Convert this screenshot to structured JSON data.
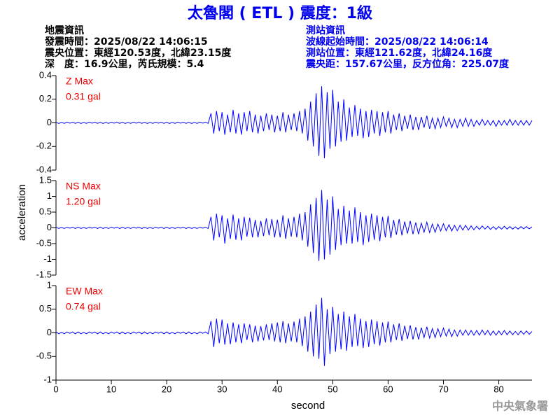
{
  "header": {
    "title": "太魯閣 ( ETL ) 震度：1級",
    "left": [
      "地震資訊",
      "發震時間：2025/08/22 14:06:15",
      "震央位置：東經120.53度，北緯23.15度",
      "深　度：16.9公里，芮氏規模：5.4"
    ],
    "right": [
      "測站資訊",
      "波線起始時間：2025/08/22 14:06:14",
      "測站位置：東經121.62度，北緯24.16度",
      "震央距：157.67公里，反方位角：225.07度"
    ]
  },
  "footer": "中央氣象署",
  "chart_data": [
    {
      "type": "line",
      "title": "Z Max",
      "annotation": "0.31 gal",
      "color": "#0000ff",
      "label_color": "#ee0000",
      "xlim": [
        0,
        86
      ],
      "ylim": [
        -0.4,
        0.4
      ],
      "yticks": [
        -0.4,
        -0.2,
        0,
        0.2,
        0.4
      ],
      "x": [
        0,
        0.5,
        1,
        1.5,
        2,
        2.5,
        3,
        3.5,
        4,
        4.5,
        5,
        5.5,
        6,
        6.5,
        7,
        7.5,
        8,
        8.5,
        9,
        9.5,
        10,
        10.5,
        11,
        11.5,
        12,
        12.5,
        13,
        13.5,
        14,
        14.5,
        15,
        15.5,
        16,
        16.5,
        17,
        17.5,
        18,
        18.5,
        19,
        19.5,
        20,
        20.5,
        21,
        21.5,
        22,
        22.5,
        23,
        23.5,
        24,
        24.5,
        25,
        25.5,
        26,
        26.5,
        27,
        27.5,
        28,
        28.5,
        29,
        29.5,
        30,
        30.5,
        31,
        31.5,
        32,
        32.5,
        33,
        33.5,
        34,
        34.5,
        35,
        35.5,
        36,
        36.5,
        37,
        37.5,
        38,
        38.5,
        39,
        39.5,
        40,
        40.5,
        41,
        41.5,
        42,
        42.5,
        43,
        43.5,
        44,
        44.5,
        45,
        45.5,
        46,
        46.5,
        47,
        47.5,
        48,
        48.5,
        49,
        49.5,
        50,
        50.5,
        51,
        51.5,
        52,
        52.5,
        53,
        53.5,
        54,
        54.5,
        55,
        55.5,
        56,
        56.5,
        57,
        57.5,
        58,
        58.5,
        59,
        59.5,
        60,
        60.5,
        61,
        61.5,
        62,
        62.5,
        63,
        63.5,
        64,
        64.5,
        65,
        65.5,
        66,
        66.5,
        67,
        67.5,
        68,
        68.5,
        69,
        69.5,
        70,
        70.5,
        71,
        71.5,
        72,
        72.5,
        73,
        73.5,
        74,
        74.5,
        75,
        75.5,
        76,
        76.5,
        77,
        77.5,
        78,
        78.5,
        79,
        79.5,
        80,
        80.5,
        81,
        81.5,
        82,
        82.5,
        83,
        83.5,
        84,
        84.5,
        85,
        85.5,
        86
      ],
      "values": [
        0.004,
        -0.005,
        0.003,
        -0.004,
        0.005,
        -0.003,
        0.004,
        -0.004,
        0.004,
        -0.005,
        0.003,
        -0.004,
        0.005,
        -0.003,
        0.004,
        -0.004,
        0.004,
        -0.005,
        0.003,
        -0.004,
        0.005,
        -0.003,
        0.004,
        -0.004,
        0.004,
        -0.005,
        0.003,
        -0.004,
        0.005,
        -0.003,
        0.004,
        -0.004,
        0.004,
        -0.005,
        0.003,
        -0.004,
        0.005,
        -0.003,
        0.004,
        -0.004,
        0.004,
        -0.005,
        0.003,
        -0.004,
        0.005,
        -0.003,
        0.004,
        -0.004,
        0.004,
        -0.005,
        0.003,
        -0.004,
        0.005,
        -0.003,
        0.004,
        -0.004,
        0.08,
        -0.09,
        0.1,
        -0.07,
        0.09,
        -0.1,
        0.07,
        -0.08,
        0.11,
        -0.09,
        0.08,
        -0.1,
        0.09,
        -0.07,
        0.1,
        -0.08,
        0.07,
        -0.09,
        0.06,
        -0.07,
        0.08,
        -0.06,
        0.07,
        -0.08,
        0.06,
        -0.07,
        0.09,
        -0.08,
        0.07,
        -0.06,
        0.08,
        -0.07,
        0.1,
        -0.09,
        0.12,
        -0.15,
        0.18,
        -0.2,
        0.25,
        -0.28,
        0.31,
        -0.3,
        0.26,
        -0.22,
        0.28,
        -0.2,
        0.18,
        -0.16,
        0.2,
        -0.15,
        0.13,
        -0.12,
        0.15,
        -0.11,
        0.12,
        -0.13,
        0.1,
        -0.12,
        0.11,
        -0.09,
        0.1,
        -0.11,
        0.09,
        -0.08,
        0.1,
        -0.09,
        0.07,
        -0.06,
        0.08,
        -0.07,
        0.06,
        -0.05,
        0.07,
        -0.06,
        0.05,
        -0.06,
        0.05,
        -0.04,
        0.06,
        -0.05,
        0.04,
        -0.05,
        0.04,
        -0.04,
        0.05,
        -0.03,
        0.04,
        -0.04,
        0.03,
        -0.04,
        0.03,
        -0.03,
        0.04,
        -0.03,
        0.03,
        -0.03,
        0.02,
        -0.02,
        0.03,
        -0.02,
        0.02,
        -0.02,
        0.02,
        -0.03,
        0.02,
        -0.02,
        0.02,
        -0.02,
        0.03,
        -0.02,
        0.02,
        -0.02,
        0.02,
        -0.02,
        0.02,
        -0.02,
        0.02
      ]
    },
    {
      "type": "line",
      "title": "NS Max",
      "annotation": "1.20 gal",
      "color": "#0000ff",
      "label_color": "#ee0000",
      "ylabel": "acceleration",
      "xlim": [
        0,
        86
      ],
      "ylim": [
        -1.5,
        1.5
      ],
      "yticks": [
        -1.5,
        -1,
        -0.5,
        0,
        0.5,
        1,
        1.5
      ],
      "x": [
        0,
        0.5,
        1,
        1.5,
        2,
        2.5,
        3,
        3.5,
        4,
        4.5,
        5,
        5.5,
        6,
        6.5,
        7,
        7.5,
        8,
        8.5,
        9,
        9.5,
        10,
        10.5,
        11,
        11.5,
        12,
        12.5,
        13,
        13.5,
        14,
        14.5,
        15,
        15.5,
        16,
        16.5,
        17,
        17.5,
        18,
        18.5,
        19,
        19.5,
        20,
        20.5,
        21,
        21.5,
        22,
        22.5,
        23,
        23.5,
        24,
        24.5,
        25,
        25.5,
        26,
        26.5,
        27,
        27.5,
        28,
        28.5,
        29,
        29.5,
        30,
        30.5,
        31,
        31.5,
        32,
        32.5,
        33,
        33.5,
        34,
        34.5,
        35,
        35.5,
        36,
        36.5,
        37,
        37.5,
        38,
        38.5,
        39,
        39.5,
        40,
        40.5,
        41,
        41.5,
        42,
        42.5,
        43,
        43.5,
        44,
        44.5,
        45,
        45.5,
        46,
        46.5,
        47,
        47.5,
        48,
        48.5,
        49,
        49.5,
        50,
        50.5,
        51,
        51.5,
        52,
        52.5,
        53,
        53.5,
        54,
        54.5,
        55,
        55.5,
        56,
        56.5,
        57,
        57.5,
        58,
        58.5,
        59,
        59.5,
        60,
        60.5,
        61,
        61.5,
        62,
        62.5,
        63,
        63.5,
        64,
        64.5,
        65,
        65.5,
        66,
        66.5,
        67,
        67.5,
        68,
        68.5,
        69,
        69.5,
        70,
        70.5,
        71,
        71.5,
        72,
        72.5,
        73,
        73.5,
        74,
        74.5,
        75,
        75.5,
        76,
        76.5,
        77,
        77.5,
        78,
        78.5,
        79,
        79.5,
        80,
        80.5,
        81,
        81.5,
        82,
        82.5,
        83,
        83.5,
        84,
        84.5,
        85,
        85.5,
        86
      ],
      "values": [
        0.02,
        -0.02,
        0.01,
        -0.02,
        0.02,
        -0.01,
        0.02,
        -0.02,
        0.02,
        -0.02,
        0.01,
        -0.02,
        0.02,
        -0.01,
        0.02,
        -0.02,
        0.02,
        -0.02,
        0.01,
        -0.02,
        0.02,
        -0.01,
        0.02,
        -0.02,
        0.02,
        -0.02,
        0.01,
        -0.02,
        0.02,
        -0.01,
        0.02,
        -0.02,
        0.02,
        -0.02,
        0.01,
        -0.02,
        0.02,
        -0.01,
        0.02,
        -0.02,
        0.02,
        -0.02,
        0.01,
        -0.02,
        0.02,
        -0.01,
        0.02,
        -0.02,
        0.02,
        -0.02,
        0.01,
        -0.02,
        0.02,
        -0.01,
        0.02,
        -0.02,
        0.35,
        -0.4,
        0.45,
        -0.3,
        0.4,
        -0.5,
        0.3,
        -0.35,
        0.42,
        -0.38,
        0.3,
        -0.4,
        0.35,
        -0.28,
        0.32,
        -0.3,
        0.25,
        -0.3,
        0.22,
        -0.26,
        0.3,
        -0.24,
        0.28,
        -0.3,
        0.26,
        -0.3,
        0.4,
        -0.35,
        0.3,
        -0.28,
        0.35,
        -0.3,
        0.45,
        -0.4,
        0.5,
        -0.6,
        0.75,
        -0.8,
        0.95,
        -1.05,
        1.2,
        -1.0,
        0.9,
        -0.85,
        1.0,
        -0.7,
        0.6,
        -0.55,
        0.7,
        -0.5,
        0.55,
        -0.5,
        0.65,
        -0.45,
        0.5,
        -0.55,
        0.4,
        -0.45,
        0.45,
        -0.38,
        0.4,
        -0.42,
        0.35,
        -0.3,
        0.38,
        -0.32,
        0.25,
        -0.22,
        0.28,
        -0.24,
        0.2,
        -0.18,
        0.22,
        -0.2,
        0.17,
        -0.2,
        0.15,
        -0.14,
        0.18,
        -0.15,
        0.12,
        -0.14,
        0.12,
        -0.1,
        0.13,
        -0.09,
        0.1,
        -0.1,
        0.08,
        -0.09,
        0.08,
        -0.07,
        0.08,
        -0.07,
        0.06,
        -0.06,
        0.05,
        -0.05,
        0.06,
        -0.04,
        0.05,
        -0.05,
        0.04,
        -0.05,
        0.04,
        -0.04,
        0.05,
        -0.04,
        0.04,
        -0.04,
        0.03,
        -0.04,
        0.04,
        -0.03,
        0.04,
        -0.03,
        0.03
      ]
    },
    {
      "type": "line",
      "title": "EW Max",
      "annotation": "0.74 gal",
      "color": "#0000ff",
      "label_color": "#ee0000",
      "xlabel": "second",
      "xlim": [
        0,
        86
      ],
      "xticks": [
        0,
        10,
        20,
        30,
        40,
        50,
        60,
        70,
        80
      ],
      "ylim": [
        -1,
        1
      ],
      "yticks": [
        -1,
        -0.5,
        0,
        0.5,
        1
      ],
      "x": [
        0,
        0.5,
        1,
        1.5,
        2,
        2.5,
        3,
        3.5,
        4,
        4.5,
        5,
        5.5,
        6,
        6.5,
        7,
        7.5,
        8,
        8.5,
        9,
        9.5,
        10,
        10.5,
        11,
        11.5,
        12,
        12.5,
        13,
        13.5,
        14,
        14.5,
        15,
        15.5,
        16,
        16.5,
        17,
        17.5,
        18,
        18.5,
        19,
        19.5,
        20,
        20.5,
        21,
        21.5,
        22,
        22.5,
        23,
        23.5,
        24,
        24.5,
        25,
        25.5,
        26,
        26.5,
        27,
        27.5,
        28,
        28.5,
        29,
        29.5,
        30,
        30.5,
        31,
        31.5,
        32,
        32.5,
        33,
        33.5,
        34,
        34.5,
        35,
        35.5,
        36,
        36.5,
        37,
        37.5,
        38,
        38.5,
        39,
        39.5,
        40,
        40.5,
        41,
        41.5,
        42,
        42.5,
        43,
        43.5,
        44,
        44.5,
        45,
        45.5,
        46,
        46.5,
        47,
        47.5,
        48,
        48.5,
        49,
        49.5,
        50,
        50.5,
        51,
        51.5,
        52,
        52.5,
        53,
        53.5,
        54,
        54.5,
        55,
        55.5,
        56,
        56.5,
        57,
        57.5,
        58,
        58.5,
        59,
        59.5,
        60,
        60.5,
        61,
        61.5,
        62,
        62.5,
        63,
        63.5,
        64,
        64.5,
        65,
        65.5,
        66,
        66.5,
        67,
        67.5,
        68,
        68.5,
        69,
        69.5,
        70,
        70.5,
        71,
        71.5,
        72,
        72.5,
        73,
        73.5,
        74,
        74.5,
        75,
        75.5,
        76,
        76.5,
        77,
        77.5,
        78,
        78.5,
        79,
        79.5,
        80,
        80.5,
        81,
        81.5,
        82,
        82.5,
        83,
        83.5,
        84,
        84.5,
        85,
        85.5,
        86
      ],
      "values": [
        0.02,
        -0.02,
        0.01,
        -0.02,
        0.02,
        -0.01,
        0.02,
        -0.02,
        0.02,
        -0.02,
        0.01,
        -0.02,
        0.02,
        -0.01,
        0.02,
        -0.02,
        0.02,
        -0.02,
        0.01,
        -0.02,
        0.02,
        -0.01,
        0.02,
        -0.02,
        0.02,
        -0.02,
        0.01,
        -0.02,
        0.02,
        -0.01,
        0.02,
        -0.02,
        0.02,
        -0.02,
        0.01,
        -0.02,
        0.02,
        -0.01,
        0.02,
        -0.02,
        0.02,
        -0.02,
        0.01,
        -0.02,
        0.02,
        -0.01,
        0.02,
        -0.02,
        0.02,
        -0.02,
        0.01,
        -0.02,
        0.02,
        -0.01,
        0.02,
        -0.02,
        0.25,
        -0.3,
        0.3,
        -0.22,
        0.28,
        -0.25,
        0.2,
        -0.24,
        0.22,
        -0.2,
        0.18,
        -0.22,
        0.2,
        -0.15,
        0.18,
        -0.2,
        0.15,
        -0.18,
        0.14,
        -0.16,
        0.18,
        -0.15,
        0.2,
        -0.18,
        0.22,
        -0.2,
        0.25,
        -0.22,
        0.2,
        -0.18,
        0.24,
        -0.2,
        0.3,
        -0.28,
        0.35,
        -0.4,
        0.45,
        -0.5,
        0.6,
        -0.55,
        0.74,
        -0.7,
        0.5,
        -0.45,
        0.55,
        -0.4,
        0.4,
        -0.35,
        0.45,
        -0.38,
        0.35,
        -0.3,
        0.4,
        -0.28,
        0.3,
        -0.32,
        0.25,
        -0.3,
        0.28,
        -0.24,
        0.25,
        -0.27,
        0.22,
        -0.2,
        0.24,
        -0.2,
        0.18,
        -0.15,
        0.2,
        -0.17,
        0.15,
        -0.13,
        0.16,
        -0.14,
        0.12,
        -0.14,
        0.11,
        -0.1,
        0.13,
        -0.11,
        0.09,
        -0.1,
        0.09,
        -0.08,
        0.1,
        -0.07,
        0.08,
        -0.08,
        0.06,
        -0.07,
        0.06,
        -0.05,
        0.06,
        -0.05,
        0.05,
        -0.05,
        0.05,
        -0.05,
        0.06,
        -0.04,
        0.05,
        -0.05,
        0.04,
        -0.05,
        0.04,
        -0.04,
        0.05,
        -0.04,
        0.04,
        -0.04,
        0.03,
        -0.04,
        0.04,
        -0.03,
        0.04,
        -0.03,
        0.03
      ]
    }
  ]
}
